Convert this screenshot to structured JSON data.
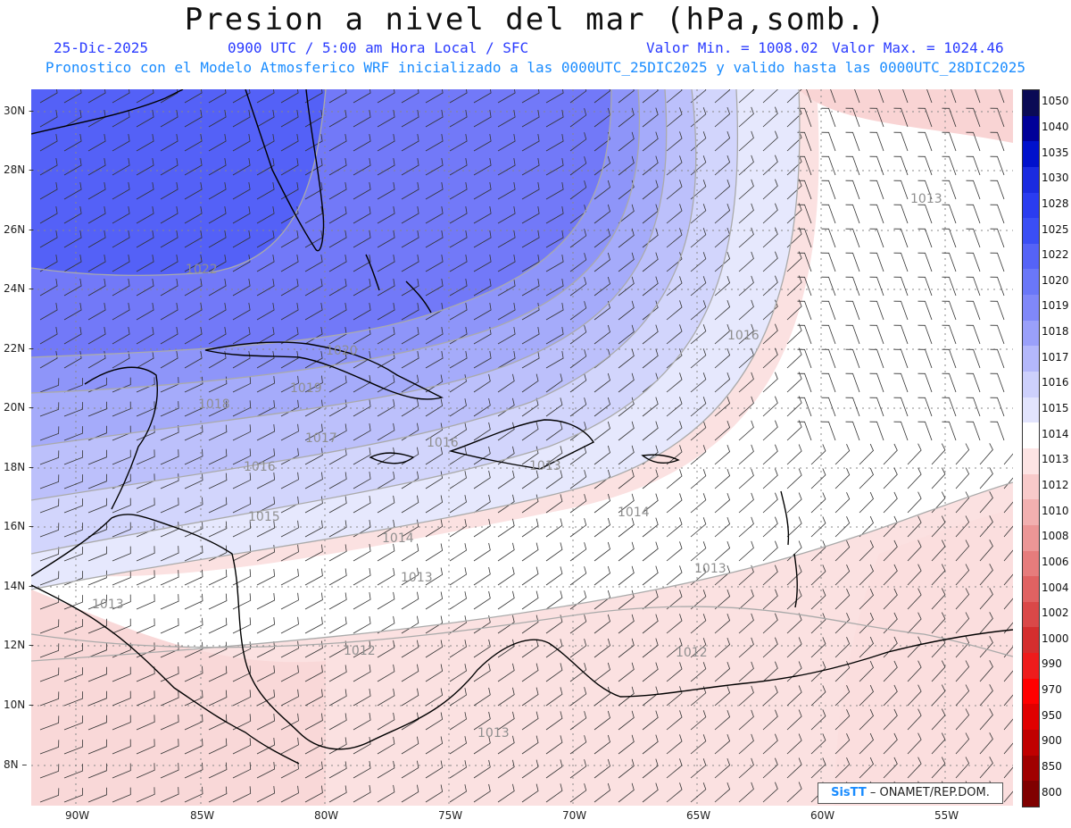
{
  "title": "Presion a nivel del mar (hPa,somb.)",
  "date": "25-Dic-2025",
  "time_info": "0900 UTC / 5:00 am Hora Local / SFC",
  "min_value": "Valor Min. = 1008.02",
  "max_value": "Valor Max. = 1024.46",
  "model_info": "Pronostico con el Modelo Atmosferico WRF inicializado a las 0000UTC_25DIC2025 y valido hasta las  0000UTC_28DIC2025",
  "lat_labels": [
    "30N",
    "28N",
    "26N",
    "24N",
    "22N",
    "20N",
    "18N",
    "16N",
    "14N",
    "12N",
    "10N",
    "8N"
  ],
  "lon_labels": [
    "90W",
    "85W",
    "80W",
    "75W",
    "70W",
    "65W",
    "60W",
    "55W"
  ],
  "colorbar": {
    "levels": [
      "1050",
      "1040",
      "1035",
      "1030",
      "1028",
      "1025",
      "1022",
      "1020",
      "1019",
      "1018",
      "1017",
      "1016",
      "1015",
      "1014",
      "1013",
      "1012",
      "1010",
      "1008",
      "1006",
      "1004",
      "1002",
      "1000",
      "990",
      "970",
      "950",
      "900",
      "850",
      "800"
    ],
    "colors": [
      "#0a0a55",
      "#000099",
      "#0011cc",
      "#1a2be0",
      "#2a3cf0",
      "#3a4ef5",
      "#5563f7",
      "#6a77f8",
      "#8088f9",
      "#9aa0fa",
      "#b4b8fb",
      "#cdd0fc",
      "#e2e4fd",
      "#ffffff",
      "#fde4e4",
      "#f8caca",
      "#f2b0b0",
      "#ec9696",
      "#e67c7c",
      "#e06262",
      "#da4848",
      "#d42e2e",
      "#ee1c1c",
      "#ff0000",
      "#e00000",
      "#c00000",
      "#a00000",
      "#800000"
    ]
  },
  "contour_labels": [
    "1022",
    "1020",
    "1019",
    "1018",
    "1017",
    "1016",
    "1016",
    "1016",
    "1015",
    "1014",
    "1014",
    "1013",
    "1013",
    "1013",
    "1013",
    "1013",
    "1012",
    "1012",
    "1013"
  ],
  "credit": {
    "brand": "SisTT",
    "text": "– ONAMET/REP.DOM."
  }
}
